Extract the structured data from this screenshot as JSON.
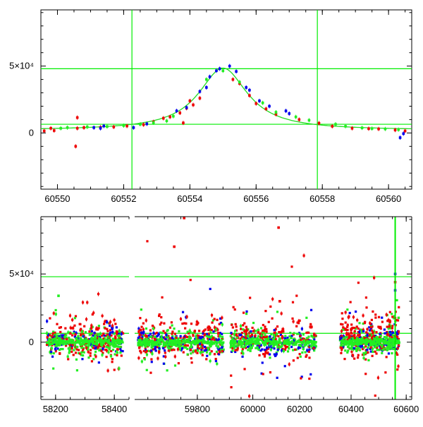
{
  "chart_data": [
    {
      "type": "scatter",
      "title": "",
      "xlabel": "",
      "ylabel": "",
      "xlim": [
        60549.5,
        60560.7
      ],
      "ylim": [
        -42000,
        92000
      ],
      "x_ticks": [
        60550,
        60552,
        60554,
        60556,
        60558,
        60560
      ],
      "y_ticks": [
        {
          "value": 0,
          "label": "0"
        },
        {
          "value": 50000,
          "label": "5×10⁴"
        }
      ],
      "reference_lines": {
        "horizontal": [
          48000,
          6500
        ],
        "vertical": [
          60552.25,
          60557.85
        ],
        "color": "#00ee00"
      },
      "model_curve": {
        "color": "#22dd22",
        "peak_x": 60555.0,
        "peak_y": 48500,
        "baseline": 2000,
        "width": 0.9
      },
      "series": [
        {
          "color": "#ee0000",
          "points": [
            [
              60549.6,
              1500
            ],
            [
              60549.8,
              3500
            ],
            [
              60549.9,
              1800
            ],
            [
              60550.6,
              3500
            ],
            [
              60550.55,
              -10000
            ],
            [
              60550.6,
              11500
            ],
            [
              60550.8,
              4000
            ],
            [
              60551.3,
              4200
            ],
            [
              60551.7,
              4500
            ],
            [
              60552.1,
              5200
            ],
            [
              60552.6,
              6200
            ],
            [
              60552.9,
              8300
            ],
            [
              60553.2,
              11000
            ],
            [
              60553.4,
              12000
            ],
            [
              60553.7,
              15000
            ],
            [
              60553.9,
              18500
            ],
            [
              60554.1,
              21000
            ],
            [
              60554.3,
              26000
            ],
            [
              60555.3,
              40000
            ],
            [
              60555.5,
              37000
            ],
            [
              60555.8,
              28000
            ],
            [
              60556.0,
              22000
            ],
            [
              60556.3,
              18000
            ],
            [
              60556.6,
              14000
            ],
            [
              60557.3,
              10000
            ],
            [
              60557.9,
              7300
            ],
            [
              60558.3,
              5000
            ],
            [
              60558.9,
              3500
            ],
            [
              60559.4,
              3200
            ],
            [
              60559.7,
              3000
            ],
            [
              60560.2,
              2200
            ],
            [
              60560.5,
              1500
            ],
            [
              60553.8,
              7500
            ],
            [
              60554.0,
              24000
            ]
          ]
        },
        {
          "color": "#0000ee",
          "points": [
            [
              60551.1,
              4000
            ],
            [
              60551.3,
              3500
            ],
            [
              60551.4,
              5200
            ],
            [
              60552.3,
              4000
            ],
            [
              60552.7,
              6800
            ],
            [
              60553.6,
              16500
            ],
            [
              60553.9,
              19000
            ],
            [
              60554.3,
              31000
            ],
            [
              60554.5,
              34000
            ],
            [
              60554.6,
              42000
            ],
            [
              60554.8,
              46500
            ],
            [
              60554.9,
              48000
            ],
            [
              60555.2,
              50000
            ],
            [
              60555.4,
              46000
            ],
            [
              60555.7,
              34000
            ],
            [
              60555.8,
              32000
            ],
            [
              60556.1,
              24000
            ],
            [
              60556.4,
              20000
            ],
            [
              60556.9,
              16500
            ],
            [
              60557.0,
              14500
            ],
            [
              60560.35,
              -3500
            ],
            [
              60560.45,
              -500
            ]
          ]
        },
        {
          "color": "#22ee22",
          "points": [
            [
              60550.1,
              3500
            ],
            [
              60550.3,
              4000
            ],
            [
              60550.9,
              4500
            ],
            [
              60551.5,
              4800
            ],
            [
              60552.0,
              5500
            ],
            [
              60552.5,
              6500
            ],
            [
              60552.9,
              7600
            ],
            [
              60553.3,
              9000
            ],
            [
              60553.5,
              12500
            ],
            [
              60554.5,
              40000
            ],
            [
              60555.0,
              46500
            ],
            [
              60555.5,
              38000
            ],
            [
              60556.2,
              22500
            ],
            [
              60556.6,
              15500
            ],
            [
              60557.2,
              12000
            ],
            [
              60557.6,
              9500
            ],
            [
              60558.4,
              6500
            ],
            [
              60558.7,
              5000
            ],
            [
              60559.2,
              3800
            ],
            [
              60559.5,
              3300
            ],
            [
              60559.9,
              3000
            ],
            [
              60560.3,
              2500
            ]
          ]
        }
      ]
    },
    {
      "type": "scatter",
      "title": "",
      "xlabel": "",
      "ylabel": "",
      "ylim": [
        -42000,
        92000
      ],
      "broken_x_axis": true,
      "segments": [
        {
          "xlim": [
            58150,
            58450
          ],
          "x_ticks": [
            58200,
            58400
          ]
        },
        {
          "xlim": [
            59610,
            59890
          ],
          "x_ticks": [
            59800
          ]
        },
        {
          "xlim": [
            59890,
            60290
          ],
          "x_ticks": [
            60000,
            60200
          ]
        },
        {
          "xlim": [
            60290,
            60620
          ],
          "x_ticks": [
            60400,
            60600
          ]
        }
      ],
      "y_ticks": [
        {
          "value": 0,
          "label": "0"
        },
        {
          "value": 50000,
          "label": "5×10⁴"
        }
      ],
      "reference_lines": {
        "horizontal": [
          48000,
          6500
        ],
        "vertical": [
          60559,
          60561
        ],
        "color": "#00ee00"
      },
      "clusters": [
        {
          "segment": 0,
          "xrange": [
            58170,
            58430
          ]
        },
        {
          "segment": 1,
          "xrange": [
            59620,
            59880
          ]
        },
        {
          "segment": 2,
          "xrange": [
            59905,
            60270
          ]
        },
        {
          "segment": 3,
          "xrange": [
            60360,
            60575
          ]
        }
      ],
      "outliers": [
        {
          "segment": 1,
          "x": 59730,
          "y": 70000,
          "color": "#ee0000"
        },
        {
          "segment": 1,
          "x": 59760,
          "y": 91000,
          "color": "#ee0000"
        },
        {
          "segment": 2,
          "x": 60110,
          "y": 84000,
          "color": "#ee0000"
        },
        {
          "segment": 2,
          "x": 60115,
          "y": 30000,
          "color": "#ee0000"
        },
        {
          "segment": 0,
          "x": 58210,
          "y": 34000,
          "color": "#22ee22"
        },
        {
          "segment": 3,
          "x": 60560,
          "y": 50000,
          "color": "#0000ee"
        },
        {
          "segment": 3,
          "x": 60560,
          "y": 44000,
          "color": "#ee0000"
        },
        {
          "segment": 3,
          "x": 60560,
          "y": 38000,
          "color": "#0000ee"
        }
      ],
      "series_colors": [
        "#ee0000",
        "#0000ee",
        "#22ee22"
      ]
    }
  ]
}
